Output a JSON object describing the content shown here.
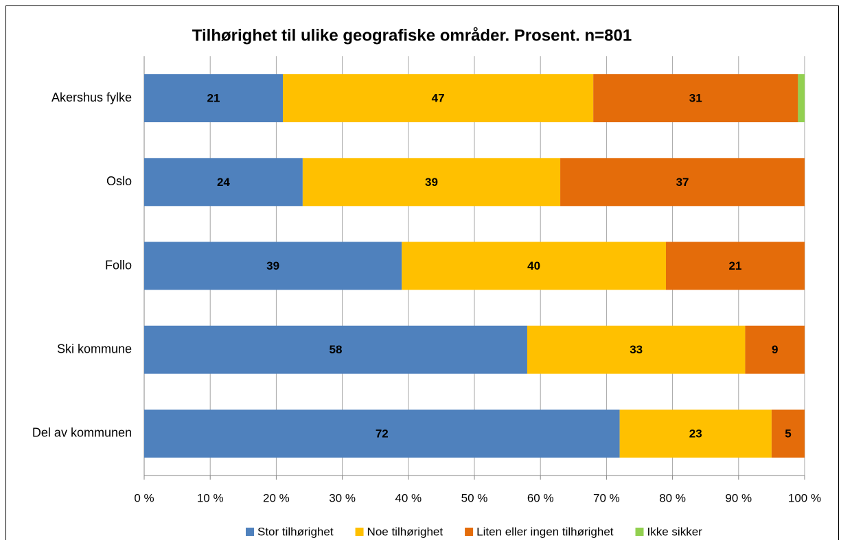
{
  "chart_data": {
    "type": "stacked-bar-horizontal",
    "title": "Tilhørighet til ulike geografiske områder. Prosent. n=801",
    "categories": [
      "Akershus fylke",
      "Oslo",
      "Follo",
      "Ski kommune",
      "Del av kommunen"
    ],
    "series": [
      {
        "name": "Stor tilhørighet",
        "color": "#4f81bd",
        "values": [
          21,
          24,
          39,
          58,
          72
        ]
      },
      {
        "name": "Noe tilhørighet",
        "color": "#ffc000",
        "values": [
          47,
          39,
          40,
          33,
          23
        ]
      },
      {
        "name": "Liten eller ingen tilhørighet",
        "color": "#e46c0a",
        "values": [
          31,
          37,
          21,
          9,
          5
        ]
      },
      {
        "name": "Ikke sikker",
        "color": "#92d050",
        "values": [
          1,
          0,
          0,
          0,
          0
        ]
      }
    ],
    "xlim": [
      0,
      100
    ],
    "xticks": [
      {
        "value": 0,
        "label": "0 %"
      },
      {
        "value": 10,
        "label": "10 %"
      },
      {
        "value": 20,
        "label": "20 %"
      },
      {
        "value": 30,
        "label": "30 %"
      },
      {
        "value": 40,
        "label": "40 %"
      },
      {
        "value": 50,
        "label": "50 %"
      },
      {
        "value": 60,
        "label": "60 %"
      },
      {
        "value": 70,
        "label": "70 %"
      },
      {
        "value": 80,
        "label": "80 %"
      },
      {
        "value": 90,
        "label": "90 %"
      },
      {
        "value": 100,
        "label": "100 %"
      }
    ],
    "grid": true,
    "legend": "bottom"
  }
}
